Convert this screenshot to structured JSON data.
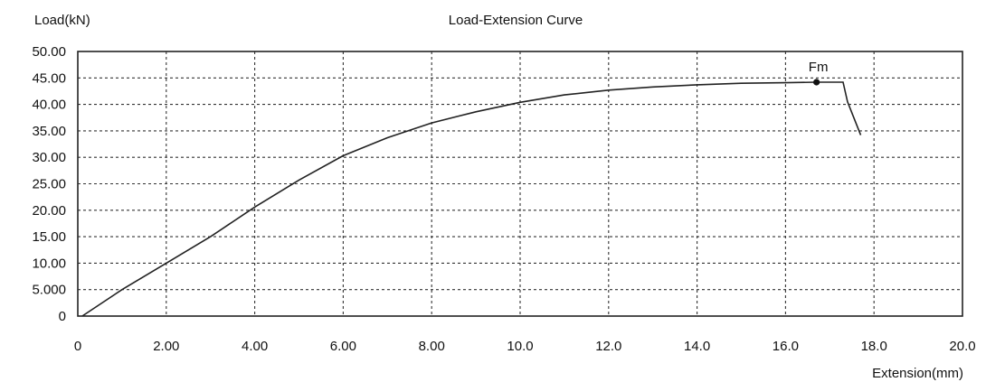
{
  "chart_data": {
    "type": "line",
    "title": "Load-Extension Curve",
    "xlabel": "Extension(mm)",
    "ylabel": "Load(kN)",
    "xlim": [
      0,
      20
    ],
    "ylim": [
      0,
      50
    ],
    "grid": true,
    "x_ticks": [
      "0",
      "2.00",
      "4.00",
      "6.00",
      "8.00",
      "10.0",
      "12.0",
      "14.0",
      "16.0",
      "18.0",
      "20.0"
    ],
    "y_ticks": [
      "0",
      "5.000",
      "10.00",
      "15.00",
      "20.00",
      "25.00",
      "30.00",
      "35.00",
      "40.00",
      "45.00",
      "50.00"
    ],
    "series": [
      {
        "x": [
          0.1,
          1.0,
          2.0,
          3.0,
          4.0,
          5.0,
          6.0,
          7.0,
          8.0,
          9.0,
          10.0,
          11.0,
          12.0,
          13.0,
          14.0,
          15.0,
          16.0,
          16.7,
          17.0,
          17.3,
          17.4,
          17.7
        ],
        "y": [
          0,
          5.0,
          10.0,
          15.0,
          20.6,
          25.7,
          30.3,
          33.7,
          36.5,
          38.6,
          40.4,
          41.8,
          42.7,
          43.3,
          43.7,
          44.0,
          44.1,
          44.2,
          44.2,
          44.2,
          40.5,
          34.2
        ]
      }
    ],
    "annotations": [
      {
        "label": "Fm",
        "x": 16.7,
        "y": 44.2
      }
    ]
  }
}
